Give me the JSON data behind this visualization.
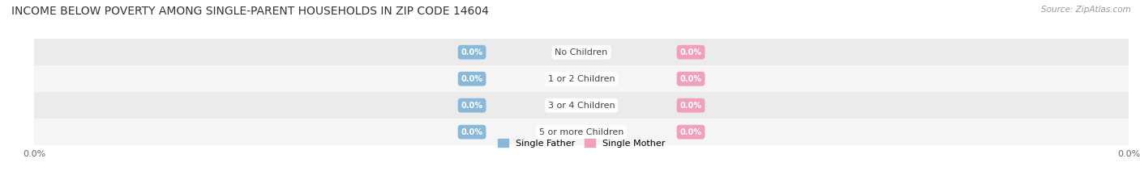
{
  "title": "INCOME BELOW POVERTY AMONG SINGLE-PARENT HOUSEHOLDS IN ZIP CODE 14604",
  "source_text": "Source: ZipAtlas.com",
  "categories": [
    "No Children",
    "1 or 2 Children",
    "3 or 4 Children",
    "5 or more Children"
  ],
  "single_father_values": [
    0.0,
    0.0,
    0.0,
    0.0
  ],
  "single_mother_values": [
    0.0,
    0.0,
    0.0,
    0.0
  ],
  "father_color": "#8ab8d8",
  "mother_color": "#f0a0b8",
  "row_colors": [
    "#ebebeb",
    "#f5f5f5",
    "#ebebeb",
    "#f5f5f5"
  ],
  "title_fontsize": 10,
  "axis_label_fontsize": 8,
  "bar_label_fontsize": 7,
  "category_fontsize": 8,
  "legend_fontsize": 8,
  "background_color": "#ffffff",
  "x_tick_label_left": "0.0%",
  "x_tick_label_right": "0.0%"
}
